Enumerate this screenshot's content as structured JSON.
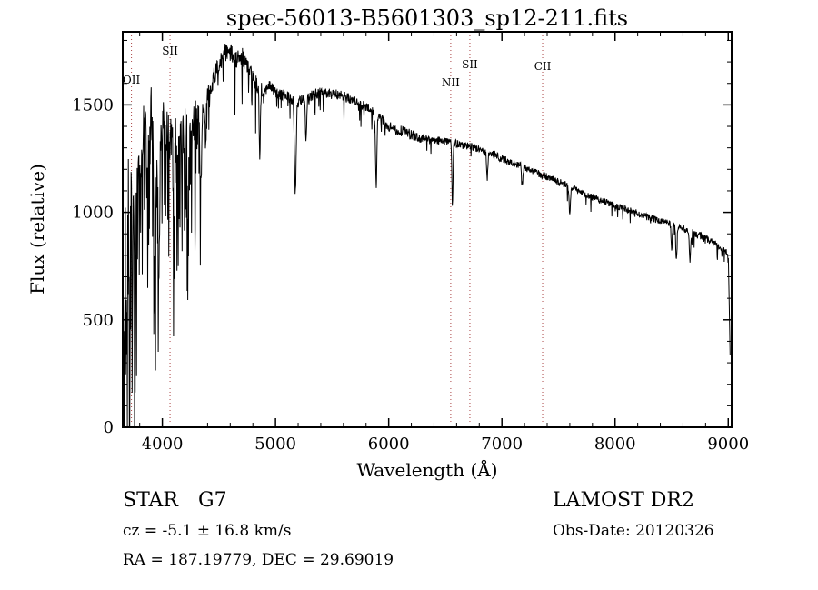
{
  "chart_data": {
    "type": "line",
    "title": "spec-56013-B5601303_sp12-211.fits",
    "xlabel": "Wavelength (Å)",
    "ylabel": "Flux (relative)",
    "xlim": [
      3650,
      9030
    ],
    "ylim": [
      0,
      1840
    ],
    "sample_range": [
      3652,
      9018
    ],
    "sample_step": 3,
    "xticks": [
      4000,
      5000,
      6000,
      7000,
      8000,
      9000
    ],
    "yticks": [
      0,
      500,
      1000,
      1500
    ],
    "x_minor_step": 200,
    "y_minor_step": 100,
    "line_color": "#000000",
    "marker_line_color": "#aa4444",
    "seed": 20120326,
    "spectral_lines": [
      {
        "label": "OII",
        "wavelength": 3727,
        "label_y": 92
      },
      {
        "label": "SII",
        "wavelength": 4068,
        "label_y": 60
      },
      {
        "label": "NII",
        "wavelength": 6548,
        "label_y": 95
      },
      {
        "label": "SII",
        "wavelength": 6717,
        "label_y": 75
      },
      {
        "label": "CII",
        "wavelength": 7360,
        "label_y": 77
      }
    ],
    "continuum": [
      [
        3650,
        500
      ],
      [
        3662,
        180
      ],
      [
        3674,
        1000
      ],
      [
        3686,
        250
      ],
      [
        3698,
        1200
      ],
      [
        3710,
        400
      ],
      [
        3722,
        1520
      ],
      [
        3734,
        700
      ],
      [
        3746,
        1100
      ],
      [
        3758,
        300
      ],
      [
        3770,
        1150
      ],
      [
        3782,
        900
      ],
      [
        3794,
        1250
      ],
      [
        3810,
        1100
      ],
      [
        3840,
        1480
      ],
      [
        3870,
        1200
      ],
      [
        3900,
        1500
      ],
      [
        3930,
        1250
      ],
      [
        3960,
        1400
      ],
      [
        3990,
        1350
      ],
      [
        4020,
        1420
      ],
      [
        4060,
        1350
      ],
      [
        4100,
        1380
      ],
      [
        4150,
        1300
      ],
      [
        4200,
        1400
      ],
      [
        4250,
        1350
      ],
      [
        4300,
        1420
      ],
      [
        4350,
        1480
      ],
      [
        4400,
        1550
      ],
      [
        4450,
        1620
      ],
      [
        4500,
        1690
      ],
      [
        4550,
        1740
      ],
      [
        4600,
        1750
      ],
      [
        4650,
        1700
      ],
      [
        4700,
        1730
      ],
      [
        4750,
        1680
      ],
      [
        4800,
        1620
      ],
      [
        4850,
        1580
      ],
      [
        4900,
        1560
      ],
      [
        4950,
        1590
      ],
      [
        5000,
        1560
      ],
      [
        5100,
        1540
      ],
      [
        5200,
        1510
      ],
      [
        5300,
        1540
      ],
      [
        5400,
        1560
      ],
      [
        5500,
        1550
      ],
      [
        5600,
        1540
      ],
      [
        5700,
        1520
      ],
      [
        5800,
        1490
      ],
      [
        5900,
        1450
      ],
      [
        6000,
        1400
      ],
      [
        6100,
        1380
      ],
      [
        6200,
        1360
      ],
      [
        6300,
        1345
      ],
      [
        6400,
        1335
      ],
      [
        6500,
        1330
      ],
      [
        6600,
        1320
      ],
      [
        6700,
        1310
      ],
      [
        6800,
        1295
      ],
      [
        6900,
        1275
      ],
      [
        7000,
        1250
      ],
      [
        7100,
        1230
      ],
      [
        7200,
        1210
      ],
      [
        7300,
        1185
      ],
      [
        7400,
        1165
      ],
      [
        7500,
        1140
      ],
      [
        7600,
        1120
      ],
      [
        7700,
        1095
      ],
      [
        7800,
        1070
      ],
      [
        7900,
        1050
      ],
      [
        8000,
        1035
      ],
      [
        8100,
        1015
      ],
      [
        8200,
        995
      ],
      [
        8300,
        975
      ],
      [
        8400,
        960
      ],
      [
        8500,
        945
      ],
      [
        8600,
        925
      ],
      [
        8700,
        905
      ],
      [
        8800,
        880
      ],
      [
        8900,
        850
      ],
      [
        8960,
        830
      ],
      [
        9000,
        810
      ],
      [
        9008,
        600
      ],
      [
        9016,
        350
      ]
    ],
    "absorption_lines": [
      [
        3933,
        700,
        10
      ],
      [
        3968,
        600,
        10
      ],
      [
        4101,
        450,
        8
      ],
      [
        4227,
        300,
        6
      ],
      [
        4340,
        400,
        8
      ],
      [
        4383,
        250,
        6
      ],
      [
        4861,
        300,
        8
      ],
      [
        5175,
        430,
        10
      ],
      [
        5270,
        200,
        8
      ],
      [
        5890,
        330,
        8
      ],
      [
        6563,
        300,
        7
      ],
      [
        6870,
        120,
        8
      ],
      [
        7180,
        80,
        8
      ],
      [
        7600,
        120,
        9
      ],
      [
        8500,
        120,
        7
      ],
      [
        8542,
        160,
        8
      ],
      [
        8662,
        150,
        8
      ]
    ],
    "noise_profile": [
      {
        "from": 3650,
        "to": 3800,
        "amp": 260,
        "spike_prob": 0.45,
        "spike_amp": 1100
      },
      {
        "from": 3800,
        "to": 4350,
        "amp": 120,
        "spike_prob": 0.3,
        "spike_amp": 650
      },
      {
        "from": 4350,
        "to": 4900,
        "amp": 45,
        "spike_prob": 0.1,
        "spike_amp": 220
      },
      {
        "from": 4900,
        "to": 6300,
        "amp": 25,
        "spike_prob": 0.05,
        "spike_amp": 120
      },
      {
        "from": 6300,
        "to": 7600,
        "amp": 18,
        "spike_prob": 0.04,
        "spike_amp": 80
      },
      {
        "from": 7600,
        "to": 9030,
        "amp": 16,
        "spike_prob": 0.05,
        "spike_amp": 70
      }
    ]
  },
  "footer": {
    "classification": "STAR",
    "subclass": "G7",
    "survey": "LAMOST DR2",
    "cz": "cz = -5.1 ± 16.8 km/s",
    "obs_date": "Obs-Date: 20120326",
    "coords": "RA = 187.19779, DEC =  29.69019"
  }
}
